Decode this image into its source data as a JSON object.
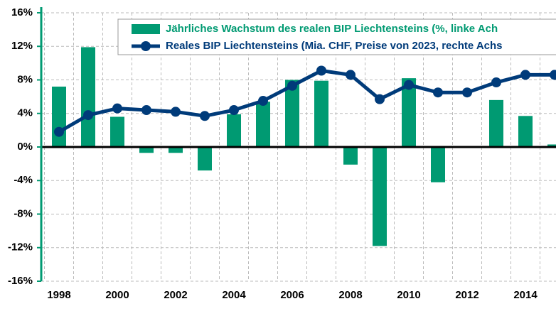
{
  "chart_data": {
    "type": "bar-line",
    "categories": [
      "1998",
      null,
      "2000",
      null,
      "2002",
      null,
      "2004",
      null,
      "2006",
      null,
      "2008",
      null,
      "2010",
      null,
      "2012",
      null,
      "2014",
      null
    ],
    "series": [
      {
        "name": "Jährliches Wachstum des realen BIP Liechtensteins (%, linke Ach",
        "type": "bar",
        "color": "#009a72",
        "values": [
          7.2,
          11.9,
          3.6,
          -0.7,
          -0.7,
          -2.8,
          3.9,
          5.4,
          8.0,
          7.9,
          -2.1,
          -11.8,
          8.2,
          -4.2,
          0.0,
          5.6,
          3.7,
          0.3
        ]
      },
      {
        "name": "Reales BIP Liechtensteins (Mia. CHF, Preise von 2023, rechte Achs",
        "type": "line",
        "color": "#003b7a",
        "values": [
          1.8,
          3.8,
          4.6,
          4.4,
          4.2,
          3.7,
          4.4,
          5.5,
          7.3,
          9.1,
          8.6,
          5.7,
          7.4,
          6.5,
          6.5,
          7.7,
          8.6,
          8.6
        ]
      }
    ],
    "ylim": [
      -16,
      16
    ],
    "yticks": [
      {
        "value": -16,
        "label": "-16%"
      },
      {
        "value": -12,
        "label": "-12%"
      },
      {
        "value": -8,
        "label": "-8%"
      },
      {
        "value": -4,
        "label": "-4%"
      },
      {
        "value": 0,
        "label": "0%"
      },
      {
        "value": 4,
        "label": "4%"
      },
      {
        "value": 8,
        "label": "8%"
      },
      {
        "value": 12,
        "label": "12%"
      },
      {
        "value": 16,
        "label": "16%"
      }
    ],
    "grid": true
  }
}
